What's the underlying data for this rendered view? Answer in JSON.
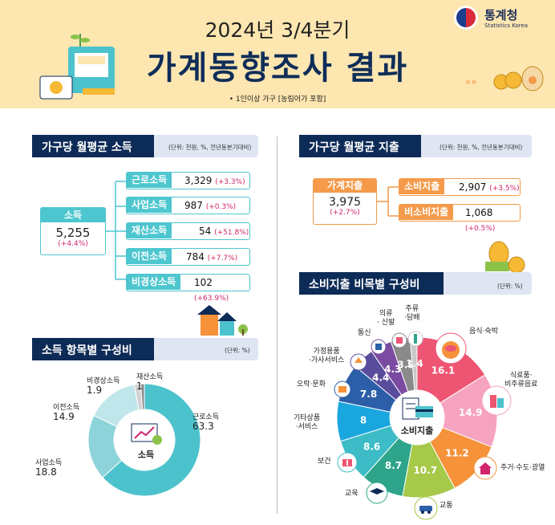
{
  "header": {
    "subtitle": "2024년 3/4분기",
    "title": "가계동향조사 결과",
    "note": "• 1인이상 가구 [농림어가 포함]"
  },
  "logo": {
    "name": "통계청",
    "name_en": "Statistics Korea"
  },
  "income": {
    "title": "가구당 월평균 소득",
    "unit": "(단위: 천원, %, 전년동분기대비)",
    "total": {
      "label": "소득",
      "value": "5,255",
      "change": "(+4.4%)"
    },
    "items": [
      {
        "label": "근로소득",
        "value": "3,329",
        "change": "(+3.3%)"
      },
      {
        "label": "사업소득",
        "value": "987",
        "change": "(+0.3%)"
      },
      {
        "label": "재산소득",
        "value": "54",
        "change": "(+51.8%)"
      },
      {
        "label": "이전소득",
        "value": "784",
        "change": "(+7.7%)"
      },
      {
        "label": "비경상소득",
        "value": "102",
        "change": "(+63.9%)"
      }
    ]
  },
  "spending": {
    "title": "가구당 월평균 지출",
    "unit": "(단위: 천원, %, 전년동분기대비)",
    "total": {
      "label": "가계지출",
      "value": "3,975",
      "change": "(+2.7%)"
    },
    "items": [
      {
        "label": "소비지출",
        "value": "2,907",
        "change": "(+3.5%)"
      },
      {
        "label": "비소비지출",
        "value": "1,068",
        "change": "(+0.5%)"
      }
    ]
  },
  "income_comp": {
    "title": "소득 항목별 구성비",
    "unit": "(단위: %)",
    "center": "소득"
  },
  "cons_comp": {
    "title": "소비지출 비목별 구성비",
    "unit": "(단위: %)",
    "center": "소비지출"
  },
  "chart_data": [
    {
      "type": "pie",
      "title": "소득 항목별 구성비",
      "categories": [
        "근로소득",
        "사업소득",
        "이전소득",
        "비경상소득",
        "재산소득"
      ],
      "values": [
        63.3,
        18.8,
        14.9,
        1.9,
        1.0
      ],
      "colors": [
        "#4cc3cc",
        "#8dd3da",
        "#bfe6ea",
        "#d3d3d3",
        "#8a8a8a"
      ]
    },
    {
      "type": "pie",
      "title": "소비지출 비목별 구성비",
      "categories": [
        "음식·숙박",
        "식료품·비주류음료",
        "주거·수도·광열",
        "교통",
        "교육",
        "보건",
        "기타상품·서비스",
        "오락·문화",
        "가정용품·가사서비스",
        "통신",
        "의류·신발",
        "주류·담배"
      ],
      "values": [
        16.1,
        14.9,
        11.2,
        10.7,
        8.7,
        8.6,
        8.0,
        7.8,
        4.4,
        4.3,
        3.9,
        1.4
      ],
      "colors": [
        "#ee5573",
        "#f6a3c0",
        "#f5923a",
        "#a6c94a",
        "#2ea58a",
        "#3dbcc7",
        "#1aa6df",
        "#2c5fa8",
        "#5a4c9c",
        "#7a4ba0",
        "#8a8a8a",
        "#c8c8c8"
      ]
    }
  ]
}
